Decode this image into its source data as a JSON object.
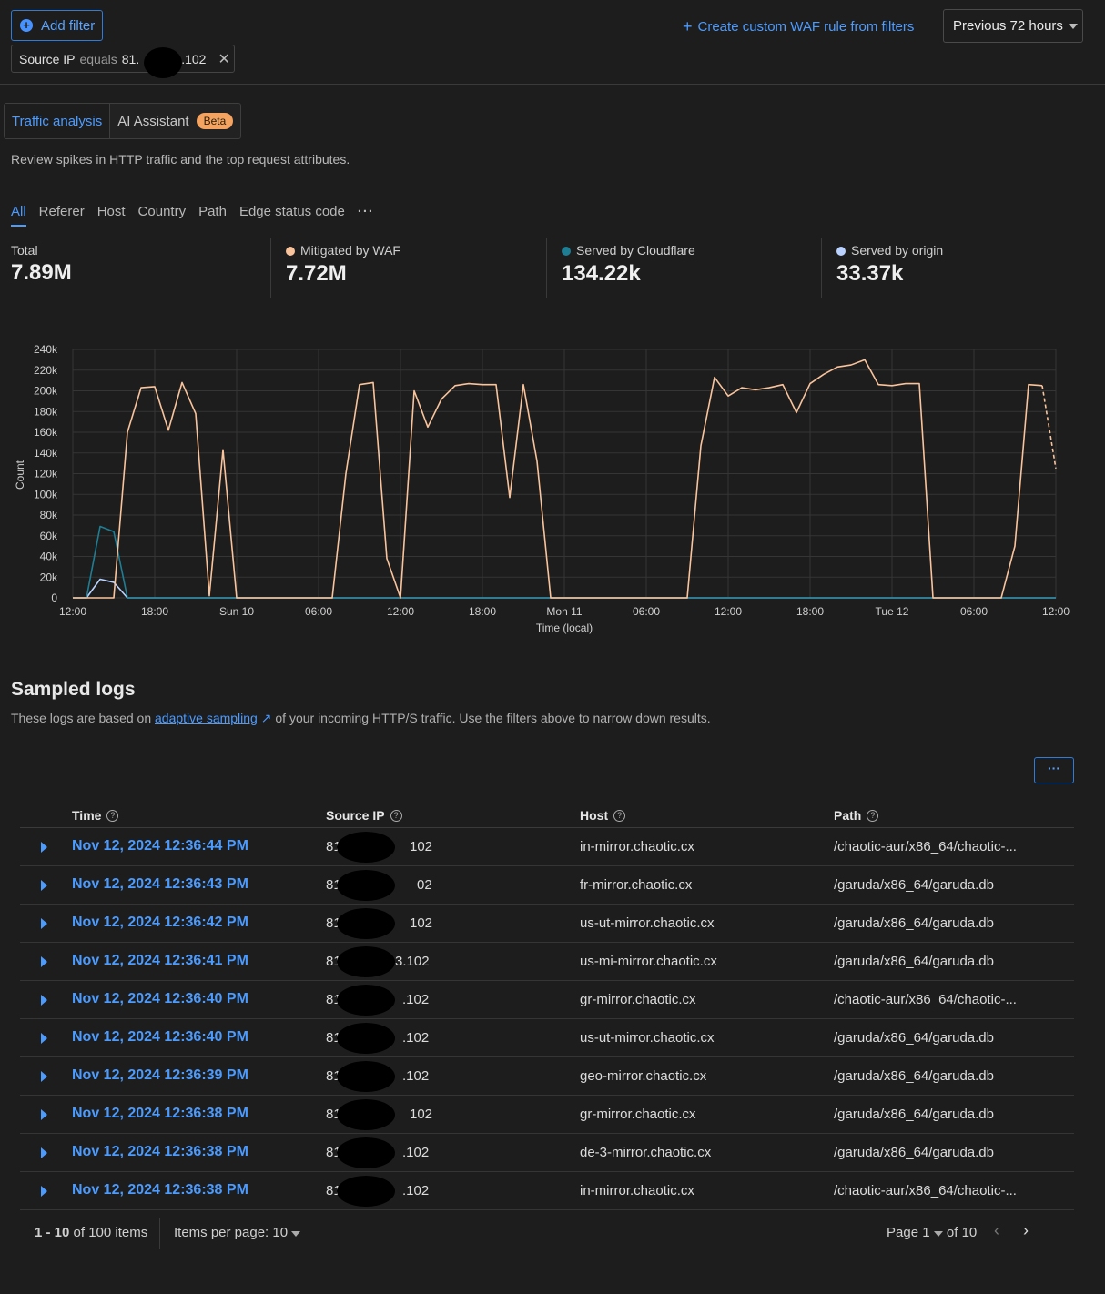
{
  "toolbar": {
    "add_filter": "Add filter",
    "filter_chip": {
      "field": "Source IP",
      "op": "equals",
      "value_prefix": "81.",
      "value_suffix": ".102"
    },
    "create_rule": "Create custom WAF rule from filters",
    "time_range": "Previous 72 hours"
  },
  "tabs": {
    "traffic": "Traffic analysis",
    "ai": "AI Assistant",
    "beta": "Beta"
  },
  "description": "Review spikes in HTTP traffic and the top request attributes.",
  "subtabs": [
    "All",
    "Referer",
    "Host",
    "Country",
    "Path",
    "Edge status code"
  ],
  "stats": [
    {
      "label": "Total",
      "value": "7.89M",
      "color": ""
    },
    {
      "label": "Mitigated by WAF",
      "value": "7.72M",
      "color": "#f9c39b"
    },
    {
      "label": "Served by Cloudflare",
      "value": "134.22k",
      "color": "#1e7e94"
    },
    {
      "label": "Served by origin",
      "value": "33.37k",
      "color": "#b9d2ff"
    }
  ],
  "chart_data": {
    "type": "line",
    "ylabel": "Count",
    "xlabel": "Time (local)",
    "ylim": [
      0,
      240000
    ],
    "xlim": [
      0,
      72
    ],
    "y_ticks": [
      "0",
      "20k",
      "40k",
      "60k",
      "80k",
      "100k",
      "120k",
      "140k",
      "160k",
      "180k",
      "200k",
      "220k",
      "240k"
    ],
    "x_ticks": [
      {
        "x": 0,
        "label": "12:00"
      },
      {
        "x": 6,
        "label": "18:00"
      },
      {
        "x": 12,
        "label": "Sun 10"
      },
      {
        "x": 18,
        "label": "06:00"
      },
      {
        "x": 24,
        "label": "12:00"
      },
      {
        "x": 30,
        "label": "18:00"
      },
      {
        "x": 36,
        "label": "Mon 11"
      },
      {
        "x": 42,
        "label": "06:00"
      },
      {
        "x": 48,
        "label": "12:00"
      },
      {
        "x": 54,
        "label": "18:00"
      },
      {
        "x": 60,
        "label": "Tue 12"
      },
      {
        "x": 66,
        "label": "06:00"
      },
      {
        "x": 72,
        "label": "12:00"
      }
    ],
    "grid": true,
    "series": [
      {
        "name": "Mitigated by WAF",
        "color": "#f9c39b",
        "points": [
          [
            0,
            0
          ],
          [
            1,
            0
          ],
          [
            2,
            0
          ],
          [
            3,
            0
          ],
          [
            4,
            160000
          ],
          [
            5,
            203000
          ],
          [
            6,
            204000
          ],
          [
            7,
            162000
          ],
          [
            8,
            208000
          ],
          [
            9,
            178000
          ],
          [
            10,
            2000
          ],
          [
            11,
            143000
          ],
          [
            12,
            0
          ],
          [
            13,
            0
          ],
          [
            14,
            0
          ],
          [
            15,
            0
          ],
          [
            16,
            0
          ],
          [
            17,
            0
          ],
          [
            18,
            0
          ],
          [
            19,
            0
          ],
          [
            20,
            120000
          ],
          [
            21,
            206000
          ],
          [
            22,
            208000
          ],
          [
            23,
            38000
          ],
          [
            24,
            0
          ],
          [
            25,
            200000
          ],
          [
            26,
            165000
          ],
          [
            27,
            192000
          ],
          [
            28,
            205000
          ],
          [
            29,
            207000
          ],
          [
            30,
            206000
          ],
          [
            31,
            206000
          ],
          [
            32,
            97000
          ],
          [
            33,
            206000
          ],
          [
            34,
            132000
          ],
          [
            35,
            0
          ],
          [
            36,
            0
          ],
          [
            37,
            0
          ],
          [
            38,
            0
          ],
          [
            39,
            0
          ],
          [
            40,
            0
          ],
          [
            41,
            0
          ],
          [
            42,
            0
          ],
          [
            43,
            0
          ],
          [
            44,
            0
          ],
          [
            45,
            0
          ],
          [
            46,
            147000
          ],
          [
            47,
            213000
          ],
          [
            48,
            195000
          ],
          [
            49,
            203000
          ],
          [
            50,
            201000
          ],
          [
            51,
            203000
          ],
          [
            52,
            206000
          ],
          [
            53,
            179000
          ],
          [
            54,
            207000
          ],
          [
            55,
            216000
          ],
          [
            56,
            223000
          ],
          [
            57,
            225000
          ],
          [
            58,
            230000
          ],
          [
            59,
            206000
          ],
          [
            60,
            205000
          ],
          [
            61,
            207000
          ],
          [
            62,
            207000
          ],
          [
            63,
            0
          ],
          [
            64,
            0
          ],
          [
            65,
            0
          ],
          [
            66,
            0
          ],
          [
            67,
            0
          ],
          [
            68,
            0
          ],
          [
            69,
            50000
          ],
          [
            70,
            206000
          ],
          [
            71,
            205000
          ],
          [
            72,
            125000
          ]
        ]
      },
      {
        "name": "Served by Cloudflare",
        "color": "#1e7e94",
        "points": [
          [
            0,
            0
          ],
          [
            1,
            0
          ],
          [
            2,
            69000
          ],
          [
            3,
            64000
          ],
          [
            4,
            0
          ],
          [
            72,
            0
          ]
        ]
      },
      {
        "name": "Served by origin",
        "color": "#b9d2ff",
        "points": [
          [
            0,
            0
          ],
          [
            1,
            0
          ],
          [
            2,
            18000
          ],
          [
            3,
            15000
          ],
          [
            4,
            0
          ],
          [
            72,
            0
          ]
        ]
      }
    ]
  },
  "sampled": {
    "title": "Sampled logs",
    "desc_before": "These logs are based on",
    "link": "adaptive sampling",
    "desc_after": "of your incoming HTTP/S traffic. Use the filters above to narrow down results.",
    "more": "···",
    "columns": [
      "Time",
      "Source IP",
      "Host",
      "Path"
    ],
    "rows": [
      {
        "time": "Nov 12, 2024 12:36:44 PM",
        "ip_a": "81",
        "ip_b": "102",
        "host": "in-mirror.chaotic.cx",
        "path": "/chaotic-aur/x86_64/chaotic-..."
      },
      {
        "time": "Nov 12, 2024 12:36:43 PM",
        "ip_a": "81",
        "ip_b": "02",
        "host": "fr-mirror.chaotic.cx",
        "path": "/garuda/x86_64/garuda.db"
      },
      {
        "time": "Nov 12, 2024 12:36:42 PM",
        "ip_a": "81.",
        "ip_b": "102",
        "host": "us-ut-mirror.chaotic.cx",
        "path": "/garuda/x86_64/garuda.db"
      },
      {
        "time": "Nov 12, 2024 12:36:41 PM",
        "ip_a": "81",
        "ip_b": "3.102",
        "host": "us-mi-mirror.chaotic.cx",
        "path": "/garuda/x86_64/garuda.db"
      },
      {
        "time": "Nov 12, 2024 12:36:40 PM",
        "ip_a": "81.",
        "ip_b": ".102",
        "host": "gr-mirror.chaotic.cx",
        "path": "/chaotic-aur/x86_64/chaotic-..."
      },
      {
        "time": "Nov 12, 2024 12:36:40 PM",
        "ip_a": "81",
        "ip_b": ".102",
        "host": "us-ut-mirror.chaotic.cx",
        "path": "/garuda/x86_64/garuda.db"
      },
      {
        "time": "Nov 12, 2024 12:36:39 PM",
        "ip_a": "81",
        "ip_b": ".102",
        "host": "geo-mirror.chaotic.cx",
        "path": "/garuda/x86_64/garuda.db"
      },
      {
        "time": "Nov 12, 2024 12:36:38 PM",
        "ip_a": "81",
        "ip_b": "102",
        "host": "gr-mirror.chaotic.cx",
        "path": "/garuda/x86_64/garuda.db"
      },
      {
        "time": "Nov 12, 2024 12:36:38 PM",
        "ip_a": "81.",
        "ip_b": ".102",
        "host": "de-3-mirror.chaotic.cx",
        "path": "/garuda/x86_64/garuda.db"
      },
      {
        "time": "Nov 12, 2024 12:36:38 PM",
        "ip_a": "81",
        "ip_b": ".102",
        "host": "in-mirror.chaotic.cx",
        "path": "/chaotic-aur/x86_64/chaotic-..."
      }
    ],
    "footer": {
      "range": "1 - 10",
      "of_items": "of 100 items",
      "per_page_label": "Items per page:",
      "per_page": "10",
      "page_label": "Page",
      "page": "1",
      "of_pages": "of 10"
    }
  }
}
